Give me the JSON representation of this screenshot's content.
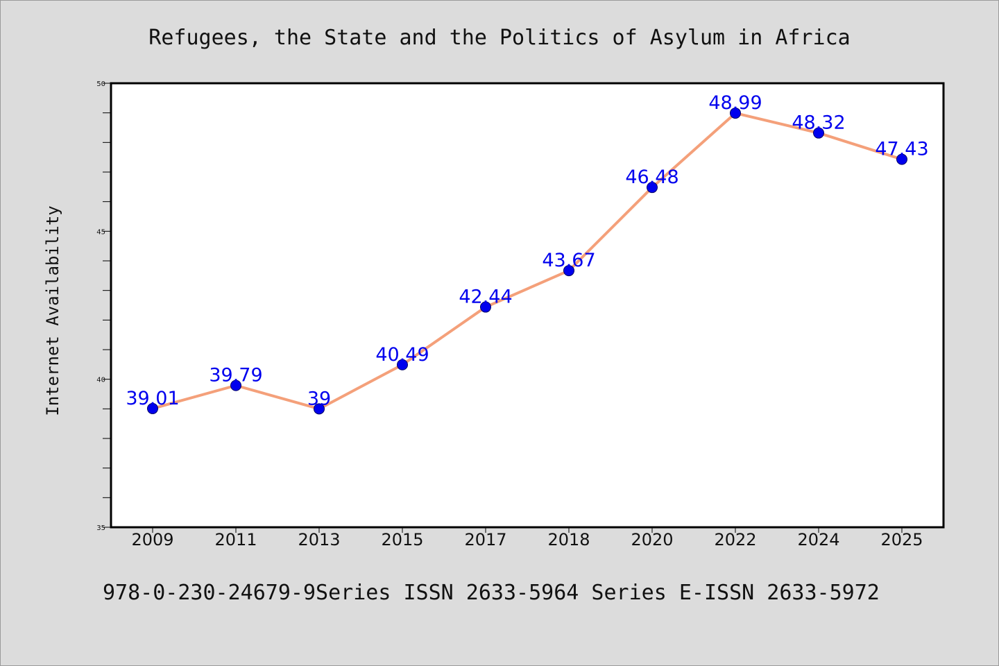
{
  "chart_data": {
    "type": "line",
    "title": "Refugees, the State and the Politics of Asylum in Africa",
    "ylabel": "Internet Availability",
    "xlabel": "",
    "categories": [
      "2009",
      "2011",
      "2013",
      "2015",
      "2017",
      "2018",
      "2020",
      "2022",
      "2024",
      "2025"
    ],
    "series": [
      {
        "values": [
          39.01,
          39.79,
          39,
          40.49,
          42.44,
          43.67,
          46.48,
          48.99,
          48.32,
          47.43
        ],
        "labels": [
          "39.01",
          "39.79",
          "39",
          "40.49",
          "42.44",
          "43.67",
          "46.48",
          "48.99",
          "48.32",
          "47.43"
        ]
      }
    ],
    "ylim": [
      35,
      50
    ],
    "yticks": [
      "35",
      "40",
      "45",
      "50"
    ],
    "grid": false,
    "colors": {
      "line": "#f4a07a",
      "marker": "#0000ee",
      "label": "#0000ee",
      "background": "#dcdcdc",
      "plot_bg": "#ffffff"
    }
  },
  "footer_text": "978-0-230-24679-9Series ISSN 2633-5964 Series E-ISSN 2633-5972"
}
